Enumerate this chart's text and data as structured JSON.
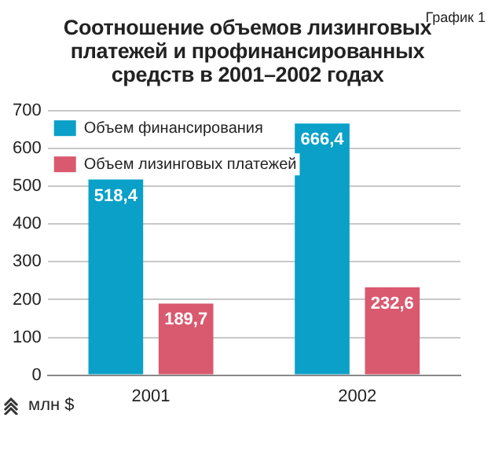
{
  "chart_data": {
    "type": "bar",
    "title": "Соотношение объемов лизинговых платежей и профинансированных средств в 2001–2002 годах",
    "ylabel": "млн $",
    "annotations": [
      "График 1"
    ],
    "categories": [
      "2001",
      "2002"
    ],
    "series": [
      {
        "name": "Объем финансирования",
        "color": "#0aa0c8",
        "values": [
          518.4,
          666.4
        ],
        "value_labels": [
          "518,4",
          "666,4"
        ]
      },
      {
        "name": "Объем лизинговых платежей",
        "color": "#d9596e",
        "values": [
          189.7,
          232.6
        ],
        "value_labels": [
          "189,7",
          "232,6"
        ]
      }
    ],
    "ylim": [
      0,
      700
    ],
    "yticks": [
      0,
      100,
      200,
      300,
      400,
      500,
      600,
      700
    ],
    "grid": "y",
    "legend": "top left"
  }
}
